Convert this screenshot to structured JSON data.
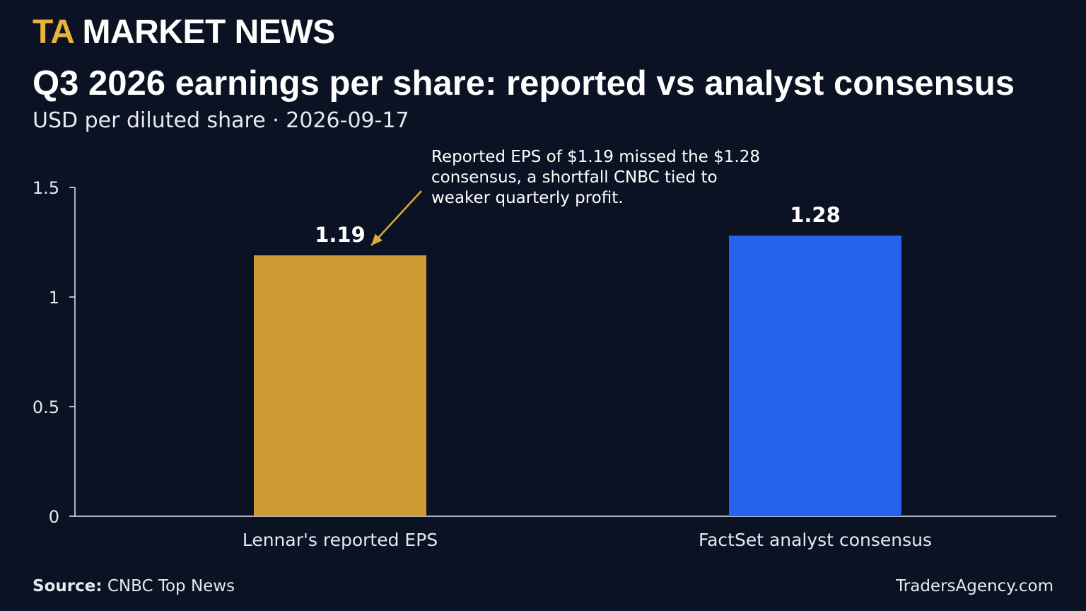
{
  "header": {
    "brand_mark": "TA",
    "brand_name": "MARKET NEWS",
    "title": "Q3 2026 earnings per share: reported vs analyst consensus",
    "subtitle": "USD per diluted share · 2026-09-17"
  },
  "footer": {
    "source_label": "Source:",
    "source_text": "CNBC Top News",
    "site": "TradersAgency.com"
  },
  "colors": {
    "background": "#0a1223",
    "brand_accent": "#e8b23a",
    "bar_reported": "#d09b35",
    "bar_consensus": "#2563eb",
    "annotation_arrow": "#e0a93a"
  },
  "chart_data": {
    "type": "bar",
    "title": "Q3 2026 earnings per share: reported vs analyst consensus",
    "subtitle": "USD per diluted share · 2026-09-17",
    "xlabel": "",
    "ylabel": "",
    "categories": [
      "Lennar's reported EPS",
      "FactSet analyst consensus"
    ],
    "values": [
      1.19,
      1.28
    ],
    "data_labels": [
      "1.19",
      "1.28"
    ],
    "bar_colors": [
      "#d09b35",
      "#2563eb"
    ],
    "ylim": [
      0,
      1.5
    ],
    "yticks": [
      0,
      0.5,
      1,
      1.5
    ],
    "ytick_labels": [
      "0",
      "0.5",
      "1",
      "1.5"
    ],
    "grid": false,
    "legend": "none",
    "annotation": {
      "target_category": "Lennar's reported EPS",
      "lines": [
        "Reported EPS of $1.19 missed the $1.28",
        "consensus, a shortfall CNBC tied to",
        "weaker quarterly profit."
      ]
    }
  }
}
